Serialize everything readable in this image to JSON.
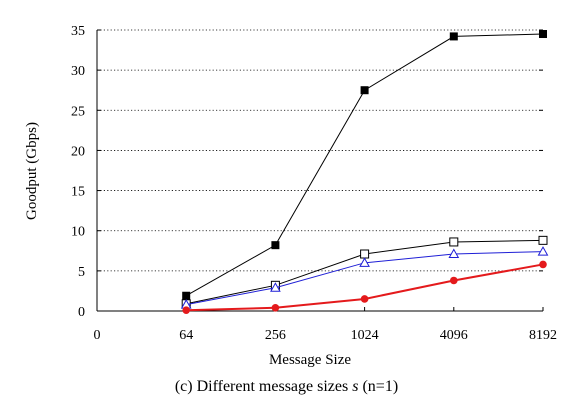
{
  "chart_data": {
    "type": "line",
    "title": "",
    "xlabel": "Message Size",
    "ylabel": "Goodput (Gbps)",
    "x_ticks": [
      "0",
      "64",
      "256",
      "1024",
      "4096",
      "8192"
    ],
    "categories": [
      "64",
      "256",
      "1024",
      "4096",
      "8192"
    ],
    "y_ticks": [
      "0",
      "5",
      "10",
      "15",
      "20",
      "25",
      "30",
      "35"
    ],
    "ylim": [
      0,
      35
    ],
    "grid": "horizontal dotted",
    "legend": "none",
    "series": [
      {
        "marker": "filled-square",
        "color": "#000000",
        "values": [
          1.9,
          8.2,
          27.5,
          34.2,
          34.5
        ]
      },
      {
        "marker": "open-square",
        "color": "#000000",
        "values": [
          0.9,
          3.2,
          7.1,
          8.6,
          8.8
        ]
      },
      {
        "marker": "open-triangle",
        "color": "#1f1fd6",
        "values": [
          0.8,
          2.9,
          6.0,
          7.1,
          7.4
        ]
      },
      {
        "marker": "filled-circle",
        "color": "#e41a1c",
        "values": [
          0.1,
          0.4,
          1.5,
          3.8,
          5.8
        ]
      }
    ]
  },
  "caption": {
    "prefix": "(c) Different message sizes ",
    "variable": "s",
    "suffix": " (n=1)"
  }
}
